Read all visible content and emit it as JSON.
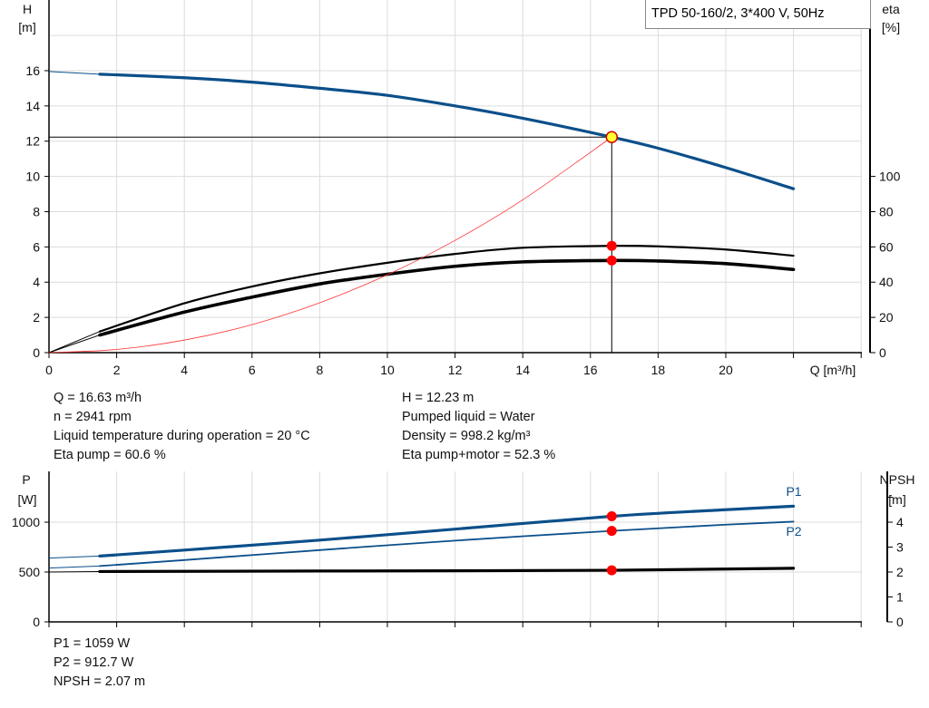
{
  "title": "TPD 50-160/2, 3*400 V, 50Hz",
  "info_top_left": [
    "Q = 16.63 m³/h",
    "n = 2941 rpm",
    "Liquid temperature during operation = 20 °C",
    "Eta pump = 60.6 %"
  ],
  "info_top_right": [
    "H = 12.23 m",
    "Pumped liquid = Water",
    "Density = 998.2 kg/m³",
    "Eta pump+motor = 52.3 %"
  ],
  "info_bottom": [
    "P1 = 1059 W",
    "P2 = 912.7 W",
    "NPSH = 2.07 m"
  ],
  "colors": {
    "head": "#0b4f8a",
    "power": "#0b4f8a",
    "eta": "#000000",
    "system": "#ff3333",
    "op_point": "#ffff33",
    "marker": "#ff0000"
  },
  "chart_data": [
    {
      "type": "line",
      "xlabel": "Q [m³/h]",
      "ylabel": "H\n[m]",
      "y2label": "eta\n[%]",
      "xlim": [
        0,
        24.4
      ],
      "ylim": [
        0,
        20
      ],
      "y2lim": [
        0,
        200
      ],
      "xticks": [
        0,
        2,
        4,
        6,
        8,
        10,
        12,
        14,
        16,
        18,
        20
      ],
      "yticks": [
        0,
        2,
        4,
        6,
        8,
        10,
        12,
        14,
        16
      ],
      "y2ticks": [
        0,
        20,
        40,
        60,
        80,
        100
      ],
      "grid": true,
      "operating_point": {
        "Q": 16.63,
        "H": 12.23,
        "eta_pump": 60.6,
        "eta_pump_motor": 52.3
      },
      "series": [
        {
          "id": "H",
          "axis": "left",
          "x": [
            0,
            1.5,
            4,
            6,
            8,
            10,
            12,
            14,
            16.63,
            18,
            20,
            22
          ],
          "y": [
            15.95,
            15.8,
            15.6,
            15.35,
            15.0,
            14.6,
            14.0,
            13.3,
            12.23,
            11.6,
            10.5,
            9.3
          ]
        },
        {
          "id": "eta_pump",
          "axis": "right",
          "x": [
            0,
            1.5,
            4,
            6,
            8,
            10,
            12,
            14,
            16.63,
            18,
            20,
            22
          ],
          "y": [
            0,
            12,
            28,
            37.5,
            45,
            51,
            56,
            59.5,
            60.6,
            60.3,
            58.5,
            55
          ]
        },
        {
          "id": "eta_pump_motor",
          "axis": "right",
          "x": [
            0,
            1.5,
            4,
            6,
            8,
            10,
            12,
            14,
            16.63,
            18,
            20,
            22
          ],
          "y": [
            0,
            10,
            23,
            31.5,
            39,
            44.5,
            49,
            51.5,
            52.3,
            52,
            50.5,
            47.2
          ]
        },
        {
          "id": "system",
          "axis": "left",
          "x": [
            0,
            2,
            4,
            6,
            8,
            10,
            12,
            14,
            16.63
          ],
          "y": [
            0,
            0.18,
            0.71,
            1.59,
            2.83,
            4.42,
            6.37,
            8.67,
            12.23
          ]
        }
      ]
    },
    {
      "type": "line",
      "ylabel": "P\n[W]",
      "y2label": "NPSH\n[m]",
      "xlim": [
        0,
        24.4
      ],
      "ylim": [
        0,
        1500
      ],
      "y2lim": [
        0,
        6
      ],
      "yticks": [
        0,
        500,
        1000
      ],
      "y2ticks": [
        0,
        1,
        2,
        3,
        4
      ],
      "grid": true,
      "series": [
        {
          "id": "P1",
          "name": "P1",
          "axis": "left",
          "x": [
            0,
            1.5,
            4,
            8,
            12,
            16.63,
            20,
            22
          ],
          "y": [
            640,
            660,
            720,
            820,
            930,
            1059,
            1125,
            1160
          ]
        },
        {
          "id": "P2",
          "name": "P2",
          "axis": "left",
          "x": [
            0,
            1.5,
            4,
            8,
            12,
            16.63,
            20,
            22
          ],
          "y": [
            540,
            560,
            620,
            720,
            815,
            912.7,
            975,
            1005
          ]
        },
        {
          "id": "NPSH",
          "axis": "right",
          "x": [
            0,
            1.5,
            8,
            16.63,
            22
          ],
          "y": [
            2.0,
            2.02,
            2.04,
            2.07,
            2.15
          ]
        }
      ]
    }
  ]
}
